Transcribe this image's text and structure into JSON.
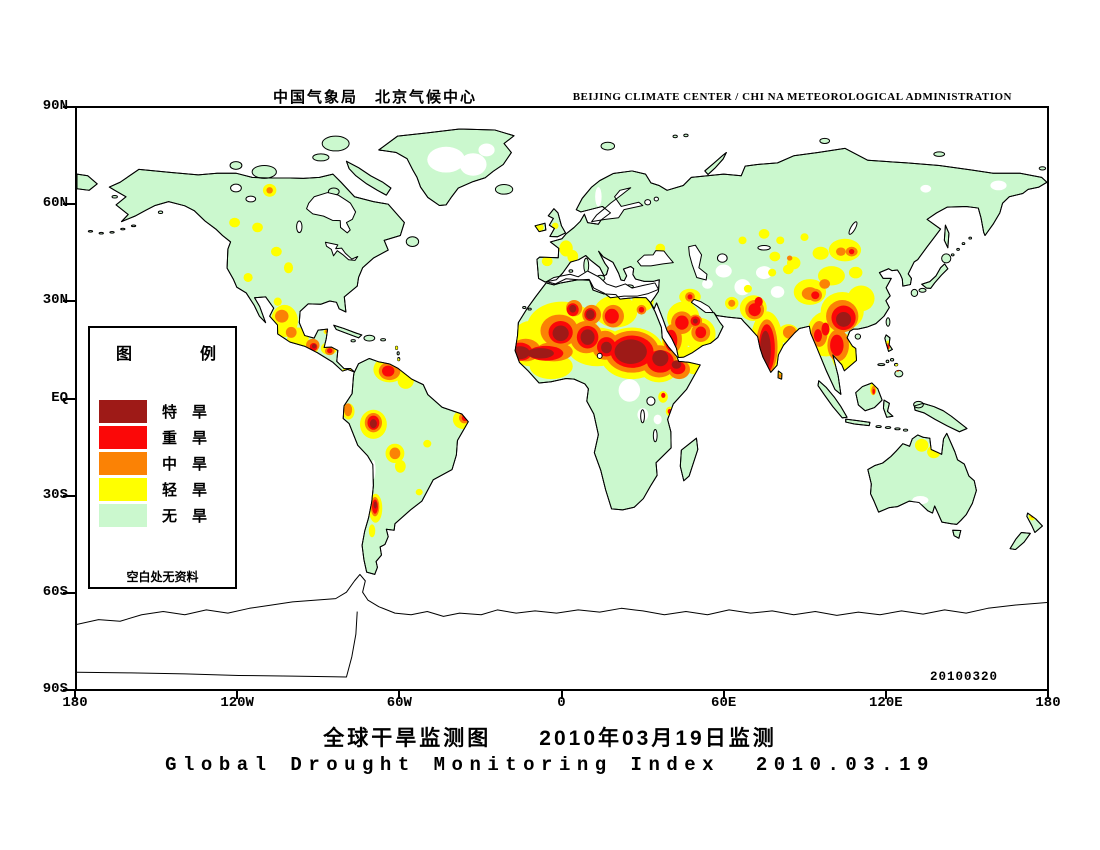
{
  "header": {
    "title_cn": "中国气象局　北京气候中心",
    "title_en": "BEIJING CLIMATE CENTER / CHI NA METEOROLOGICAL ADMINISTRATION"
  },
  "footer": {
    "title_cn": "全球干旱监测图　　2010年03月19日监测",
    "title_en": "Global Drought Monitoring Index  2010.03.19"
  },
  "map": {
    "date_stamp": "20100320",
    "y_axis_labels": [
      "90N",
      "60N",
      "30N",
      "EQ",
      "30S",
      "60S",
      "90S"
    ],
    "x_axis_labels": [
      "180",
      "120W",
      "60W",
      "0",
      "60E",
      "120E",
      "180"
    ]
  },
  "legend": {
    "title": "图　例",
    "note": "空白处无资料",
    "items": [
      {
        "label": "特　旱",
        "level": "extreme",
        "color": "#9E1A17"
      },
      {
        "label": "重　旱",
        "level": "severe",
        "color": "#FB0808"
      },
      {
        "label": "中　旱",
        "level": "moderate",
        "color": "#FB8205"
      },
      {
        "label": "轻　旱",
        "level": "light",
        "color": "#FFFF00"
      },
      {
        "label": "无　旱",
        "level": "none",
        "color": "#CBF8CE"
      }
    ]
  },
  "colors": {
    "land_no_drought": "#CBF8CE",
    "ocean": "#FFFFFF",
    "coastline": "#000000",
    "extreme": "#9E1A17",
    "severe": "#FB0808",
    "moderate": "#FB8205",
    "light": "#FFFF00"
  },
  "drought_blobs": {
    "light": [
      [
        -12,
        17,
        7,
        7
      ],
      [
        0,
        22,
        13,
        8
      ],
      [
        13,
        16,
        11,
        6
      ],
      [
        26,
        14,
        12,
        8
      ],
      [
        36,
        11,
        8,
        6
      ],
      [
        42,
        18,
        5,
        5
      ],
      [
        20,
        27,
        8,
        5
      ],
      [
        30,
        30,
        4,
        3
      ],
      [
        45,
        25,
        6,
        5
      ],
      [
        51,
        20,
        6,
        5
      ],
      [
        47.5,
        31.5,
        4,
        2.5
      ],
      [
        -4,
        10,
        8,
        4
      ],
      [
        49,
        10,
        3.5,
        2.5
      ],
      [
        48,
        13,
        6,
        3
      ],
      [
        37.5,
        0.5,
        1.8,
        1.8
      ],
      [
        40,
        -4,
        1.5,
        1.5
      ],
      [
        63,
        29.5,
        2.5,
        2
      ],
      [
        69,
        34,
        1.5,
        1.2
      ],
      [
        76,
        17,
        6,
        10
      ],
      [
        71,
        28,
        5,
        4
      ],
      [
        84,
        20,
        4,
        3
      ],
      [
        98,
        20,
        7,
        7
      ],
      [
        105,
        14,
        5,
        6
      ],
      [
        104,
        27,
        8,
        6
      ],
      [
        111,
        31,
        5,
        4
      ],
      [
        92,
        33,
        6,
        4
      ],
      [
        100,
        38,
        5,
        3
      ],
      [
        86,
        42,
        2.5,
        2
      ],
      [
        79,
        44,
        2,
        1.5
      ],
      [
        84,
        40,
        2,
        1.5
      ],
      [
        78,
        39,
        1.5,
        1.2
      ],
      [
        109,
        39,
        2.5,
        1.8
      ],
      [
        105,
        46,
        6,
        3.5
      ],
      [
        96,
        45,
        3,
        2
      ],
      [
        75,
        51,
        2,
        1.5
      ],
      [
        81,
        49,
        1.5,
        1.2
      ],
      [
        67,
        49,
        1.5,
        1.2
      ],
      [
        90,
        50,
        1.5,
        1.2
      ],
      [
        36.5,
        46.5,
        1.8,
        1.5
      ],
      [
        1.5,
        46.5,
        2.5,
        2.5
      ],
      [
        4,
        44,
        2,
        2
      ],
      [
        -5.5,
        42.5,
        2,
        1.5
      ],
      [
        -8.5,
        53,
        1.7,
        1.3
      ],
      [
        -2.5,
        53.5,
        1.2,
        1
      ],
      [
        -108.5,
        64.5,
        2.5,
        2
      ],
      [
        -121.5,
        54.5,
        2,
        1.5
      ],
      [
        -113,
        53,
        2,
        1.5
      ],
      [
        -106,
        45.5,
        2,
        1.5
      ],
      [
        -101.5,
        40.5,
        1.7,
        1.7
      ],
      [
        -116.5,
        37.5,
        1.7,
        1.4
      ],
      [
        -105.5,
        30,
        1.5,
        1.3
      ],
      [
        -103,
        24,
        5,
        5
      ],
      [
        -98,
        18.5,
        4,
        3.5
      ],
      [
        -94.5,
        15.5,
        4,
        2.5
      ],
      [
        -87.5,
        20.7,
        1,
        0.8
      ],
      [
        -86.5,
        15.5,
        3,
        2
      ],
      [
        -79.5,
        8,
        2.5,
        1.5
      ],
      [
        -64,
        9,
        6,
        4
      ],
      [
        -58,
        5.5,
        3,
        2.5
      ],
      [
        -61.3,
        15.7,
        0.9,
        0.9
      ],
      [
        -79.2,
        -4,
        2.2,
        2.5
      ],
      [
        -70,
        -8,
        5,
        4.5
      ],
      [
        -36.5,
        -6.5,
        4,
        3
      ],
      [
        -62,
        -17,
        3.5,
        3
      ],
      [
        -60,
        -21,
        2,
        2
      ],
      [
        -50,
        -14,
        1.5,
        1.2
      ],
      [
        -53,
        -29,
        1.3,
        1
      ],
      [
        -69.2,
        -34,
        2.5,
        4.5
      ],
      [
        -70.5,
        -41,
        1.2,
        2
      ],
      [
        133.5,
        -14.5,
        2.5,
        2
      ],
      [
        138,
        -16.5,
        2.5,
        2
      ],
      [
        174.5,
        -36.5,
        1.3,
        1.3
      ],
      [
        115.5,
        3,
        1.2,
        2
      ],
      [
        121,
        16.5,
        1,
        1.5
      ],
      [
        124.5,
        9.5,
        1,
        1.2
      ],
      [
        80.8,
        7.2,
        0.9,
        1.1
      ]
    ],
    "moderate": [
      [
        -13.5,
        15,
        5.5,
        3.5
      ],
      [
        -3,
        14.5,
        7,
        3
      ],
      [
        -1,
        21,
        7,
        5
      ],
      [
        9,
        19,
        6,
        5
      ],
      [
        16,
        16.5,
        5,
        4.5
      ],
      [
        26,
        14.5,
        10,
        6.5
      ],
      [
        36,
        11.5,
        6.5,
        5
      ],
      [
        43.5,
        9,
        4,
        3
      ],
      [
        41,
        18.5,
        3.5,
        4.5
      ],
      [
        19,
        25.5,
        4,
        3.5
      ],
      [
        11,
        26,
        3.5,
        3
      ],
      [
        4.5,
        28,
        3,
        2.5
      ],
      [
        29.5,
        27.5,
        1.8,
        1.5
      ],
      [
        44.5,
        23.5,
        4,
        3.5
      ],
      [
        51.5,
        20.5,
        3.5,
        3
      ],
      [
        47.5,
        31.5,
        1.8,
        1.5
      ],
      [
        49.5,
        24,
        2.5,
        2
      ],
      [
        63,
        29.5,
        1.3,
        1.1
      ],
      [
        76,
        16,
        4,
        8.5
      ],
      [
        71.5,
        27.5,
        3.5,
        3
      ],
      [
        84.5,
        20.5,
        2.5,
        2
      ],
      [
        104,
        25.5,
        6,
        5
      ],
      [
        102.5,
        16.5,
        4,
        5
      ],
      [
        95.5,
        20,
        3,
        4
      ],
      [
        92,
        32.5,
        3,
        2
      ],
      [
        97.5,
        35.5,
        2,
        1.5
      ],
      [
        94,
        32,
        2.5,
        2
      ],
      [
        103.5,
        45.5,
        1.8,
        1.3
      ],
      [
        107.5,
        45.5,
        2.2,
        1.5
      ],
      [
        84.5,
        43.5,
        1,
        0.8
      ],
      [
        -108.5,
        64.5,
        1.2,
        1
      ],
      [
        -104,
        25.5,
        2.5,
        2
      ],
      [
        -100.5,
        20.5,
        2,
        1.7
      ],
      [
        -92.5,
        16.5,
        2.5,
        2
      ],
      [
        -86.2,
        14.7,
        1.8,
        1.3
      ],
      [
        -79,
        8,
        1.5,
        1
      ],
      [
        -64,
        8.5,
        4,
        2.8
      ],
      [
        -87.3,
        20.8,
        0.6,
        0.5
      ],
      [
        -79.4,
        -3.5,
        1.5,
        2
      ],
      [
        -70,
        -7.5,
        3.2,
        3
      ],
      [
        -36.2,
        -6,
        2,
        1.7
      ],
      [
        -62,
        -17,
        2,
        1.8
      ],
      [
        -69.4,
        -33.5,
        1.6,
        3
      ],
      [
        115.6,
        2.5,
        0.8,
        1.4
      ],
      [
        121,
        16.2,
        0.7,
        1
      ],
      [
        124.6,
        9.2,
        0.7,
        0.9
      ],
      [
        174.6,
        -36.3,
        0.7,
        0.7
      ],
      [
        80.9,
        7,
        0.5,
        0.6
      ]
    ],
    "severe": [
      [
        -15.5,
        14.5,
        4.5,
        2.8
      ],
      [
        -6,
        14,
        6.5,
        2.3
      ],
      [
        -0.5,
        20.5,
        4.5,
        3.5
      ],
      [
        9.5,
        19,
        4,
        3.5
      ],
      [
        16.5,
        16,
        3.5,
        3
      ],
      [
        26,
        14.5,
        8,
        5
      ],
      [
        36.5,
        11.5,
        5,
        3.5
      ],
      [
        43,
        9.5,
        2.8,
        2
      ],
      [
        40.5,
        18,
        2.3,
        3.3
      ],
      [
        18.5,
        25.5,
        2.6,
        2.3
      ],
      [
        10.5,
        26,
        2.2,
        2
      ],
      [
        4,
        27.5,
        2.2,
        2
      ],
      [
        29.5,
        27.5,
        1,
        0.9
      ],
      [
        44.5,
        23.5,
        2.5,
        2.2
      ],
      [
        49.5,
        24,
        1.8,
        1.5
      ],
      [
        51.5,
        20.5,
        2,
        1.8
      ],
      [
        47.5,
        31.5,
        0.9,
        0.8
      ],
      [
        37.6,
        1,
        0.8,
        0.8
      ],
      [
        40,
        -4,
        0.8,
        0.8
      ],
      [
        76,
        15.5,
        3,
        7.5
      ],
      [
        71.5,
        27.5,
        2.3,
        2
      ],
      [
        73,
        30,
        1.5,
        1.5
      ],
      [
        104.5,
        25,
        4.5,
        3.8
      ],
      [
        102,
        16.5,
        2.5,
        3.3
      ],
      [
        97.8,
        21.5,
        1.5,
        2
      ],
      [
        94,
        32,
        1.5,
        1.2
      ],
      [
        95,
        19.5,
        1.5,
        2
      ],
      [
        107.5,
        45.5,
        1,
        0.8
      ],
      [
        -92.2,
        16,
        1.4,
        1.2
      ],
      [
        -86.2,
        14.8,
        1,
        0.8
      ],
      [
        -79,
        8.2,
        0.9,
        0.6
      ],
      [
        -64.5,
        8.5,
        2.3,
        1.7
      ],
      [
        -70,
        -7.5,
        2.2,
        2.2
      ],
      [
        -36,
        -6,
        1.2,
        1
      ],
      [
        -69.4,
        -33.5,
        1.1,
        2.2
      ],
      [
        115.7,
        2.2,
        0.45,
        0.8
      ],
      [
        121,
        16,
        0.45,
        0.7
      ],
      [
        124.7,
        9,
        0.45,
        0.6
      ],
      [
        174.7,
        -36.2,
        0.4,
        0.4
      ]
    ],
    "extreme": [
      [
        -15.5,
        14.2,
        3.5,
        2
      ],
      [
        -8,
        14,
        5,
        1.6
      ],
      [
        -0.5,
        20.2,
        3,
        2.4
      ],
      [
        9.5,
        19,
        2.6,
        2.4
      ],
      [
        25.5,
        14.5,
        6,
        3.8
      ],
      [
        36.5,
        12.5,
        3,
        2.5
      ],
      [
        16.5,
        15.8,
        2,
        1.8
      ],
      [
        10.5,
        26,
        1.6,
        1.5
      ],
      [
        4,
        27.8,
        1.3,
        1.2
      ],
      [
        42.5,
        10.5,
        1.8,
        1.3
      ],
      [
        49.5,
        24,
        0.9,
        0.8
      ],
      [
        75.5,
        15,
        2,
        6
      ],
      [
        104.5,
        24.5,
        2.8,
        2.3
      ],
      [
        -92,
        16.2,
        0.8,
        0.7
      ],
      [
        -70,
        -7.8,
        1.3,
        1.4
      ],
      [
        -69.3,
        -33,
        0.6,
        1.1
      ]
    ]
  },
  "no_data_patches": [
    [
      -43,
      74,
      7,
      4
    ],
    [
      -33,
      72.5,
      5,
      3.5
    ],
    [
      -28,
      77,
      3,
      2
    ],
    [
      25,
      2.5,
      4,
      3.5
    ],
    [
      30,
      -5,
      2,
      2
    ],
    [
      35.5,
      -6.5,
      1.5,
      1.5
    ],
    [
      45.5,
      19.5,
      2.2,
      1.5
    ],
    [
      67,
      34.5,
      3,
      2.5
    ],
    [
      75,
      39,
      3,
      2
    ],
    [
      60,
      39.5,
      3,
      2
    ],
    [
      54,
      35.5,
      2,
      1.5
    ],
    [
      80,
      33,
      2.5,
      1.8
    ],
    [
      -70,
      -22,
      0.8,
      3
    ],
    [
      133,
      -31.5,
      3,
      1.3
    ],
    [
      162,
      66,
      3,
      1.5
    ],
    [
      135,
      65,
      2,
      1.2
    ],
    [
      13.5,
      62.5,
      1.2,
      3
    ]
  ]
}
